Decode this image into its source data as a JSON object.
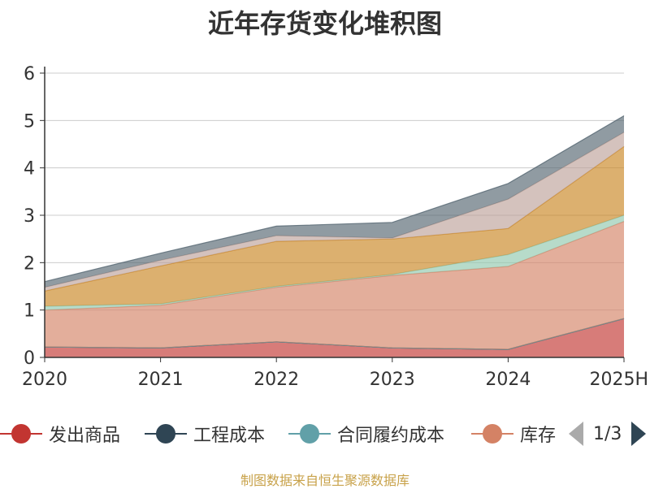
{
  "chart_data": {
    "type": "area",
    "stacked": true,
    "title": "近年存货变化堆积图",
    "ylabel": "",
    "categories": [
      "2020",
      "2021",
      "2022",
      "2023",
      "2024",
      "2025H"
    ],
    "ylim": [
      0,
      6
    ],
    "yticks": [
      "0",
      "1",
      "2",
      "3",
      "4",
      "5",
      "6"
    ],
    "grid": true,
    "series": [
      {
        "name": "发出商品",
        "values": [
          0.22,
          0.2,
          0.33,
          0.2,
          0.17,
          0.82
        ],
        "color": "#c23531"
      },
      {
        "name": "工程成本",
        "values": [
          0.0,
          0.0,
          0.0,
          0.0,
          0.0,
          0.0
        ],
        "color": "#2f4554"
      },
      {
        "name": "合同履约成本",
        "values": [
          0.0,
          0.0,
          0.0,
          0.0,
          0.0,
          0.0
        ],
        "color": "#61a0a8"
      },
      {
        "name": "库存",
        "values": [
          0.78,
          0.9,
          1.15,
          1.53,
          1.75,
          2.05
        ],
        "color": "#d48265"
      },
      {
        "name": "",
        "values": [
          0.08,
          0.03,
          0.02,
          0.02,
          0.25,
          0.13
        ],
        "color": "#91c7ae"
      },
      {
        "name": "",
        "values": [
          0.32,
          0.8,
          0.95,
          0.75,
          0.55,
          1.45
        ],
        "color": "#ca8622"
      },
      {
        "name": "",
        "values": [
          0.08,
          0.12,
          0.12,
          0.02,
          0.62,
          0.3
        ],
        "color": "#bda29a"
      },
      {
        "name": "",
        "values": [
          0.12,
          0.15,
          0.2,
          0.33,
          0.33,
          0.35
        ],
        "color": "#546570"
      }
    ]
  },
  "legend": {
    "items": [
      {
        "label": "发出商品",
        "color": "#c23531"
      },
      {
        "label": "工程成本",
        "color": "#2f4554"
      },
      {
        "label": "合同履约成本",
        "color": "#61a0a8"
      },
      {
        "label": "库存",
        "color": "#d48265"
      }
    ],
    "page_text": "1/3"
  },
  "source": "制图数据来自恒生聚源数据库"
}
